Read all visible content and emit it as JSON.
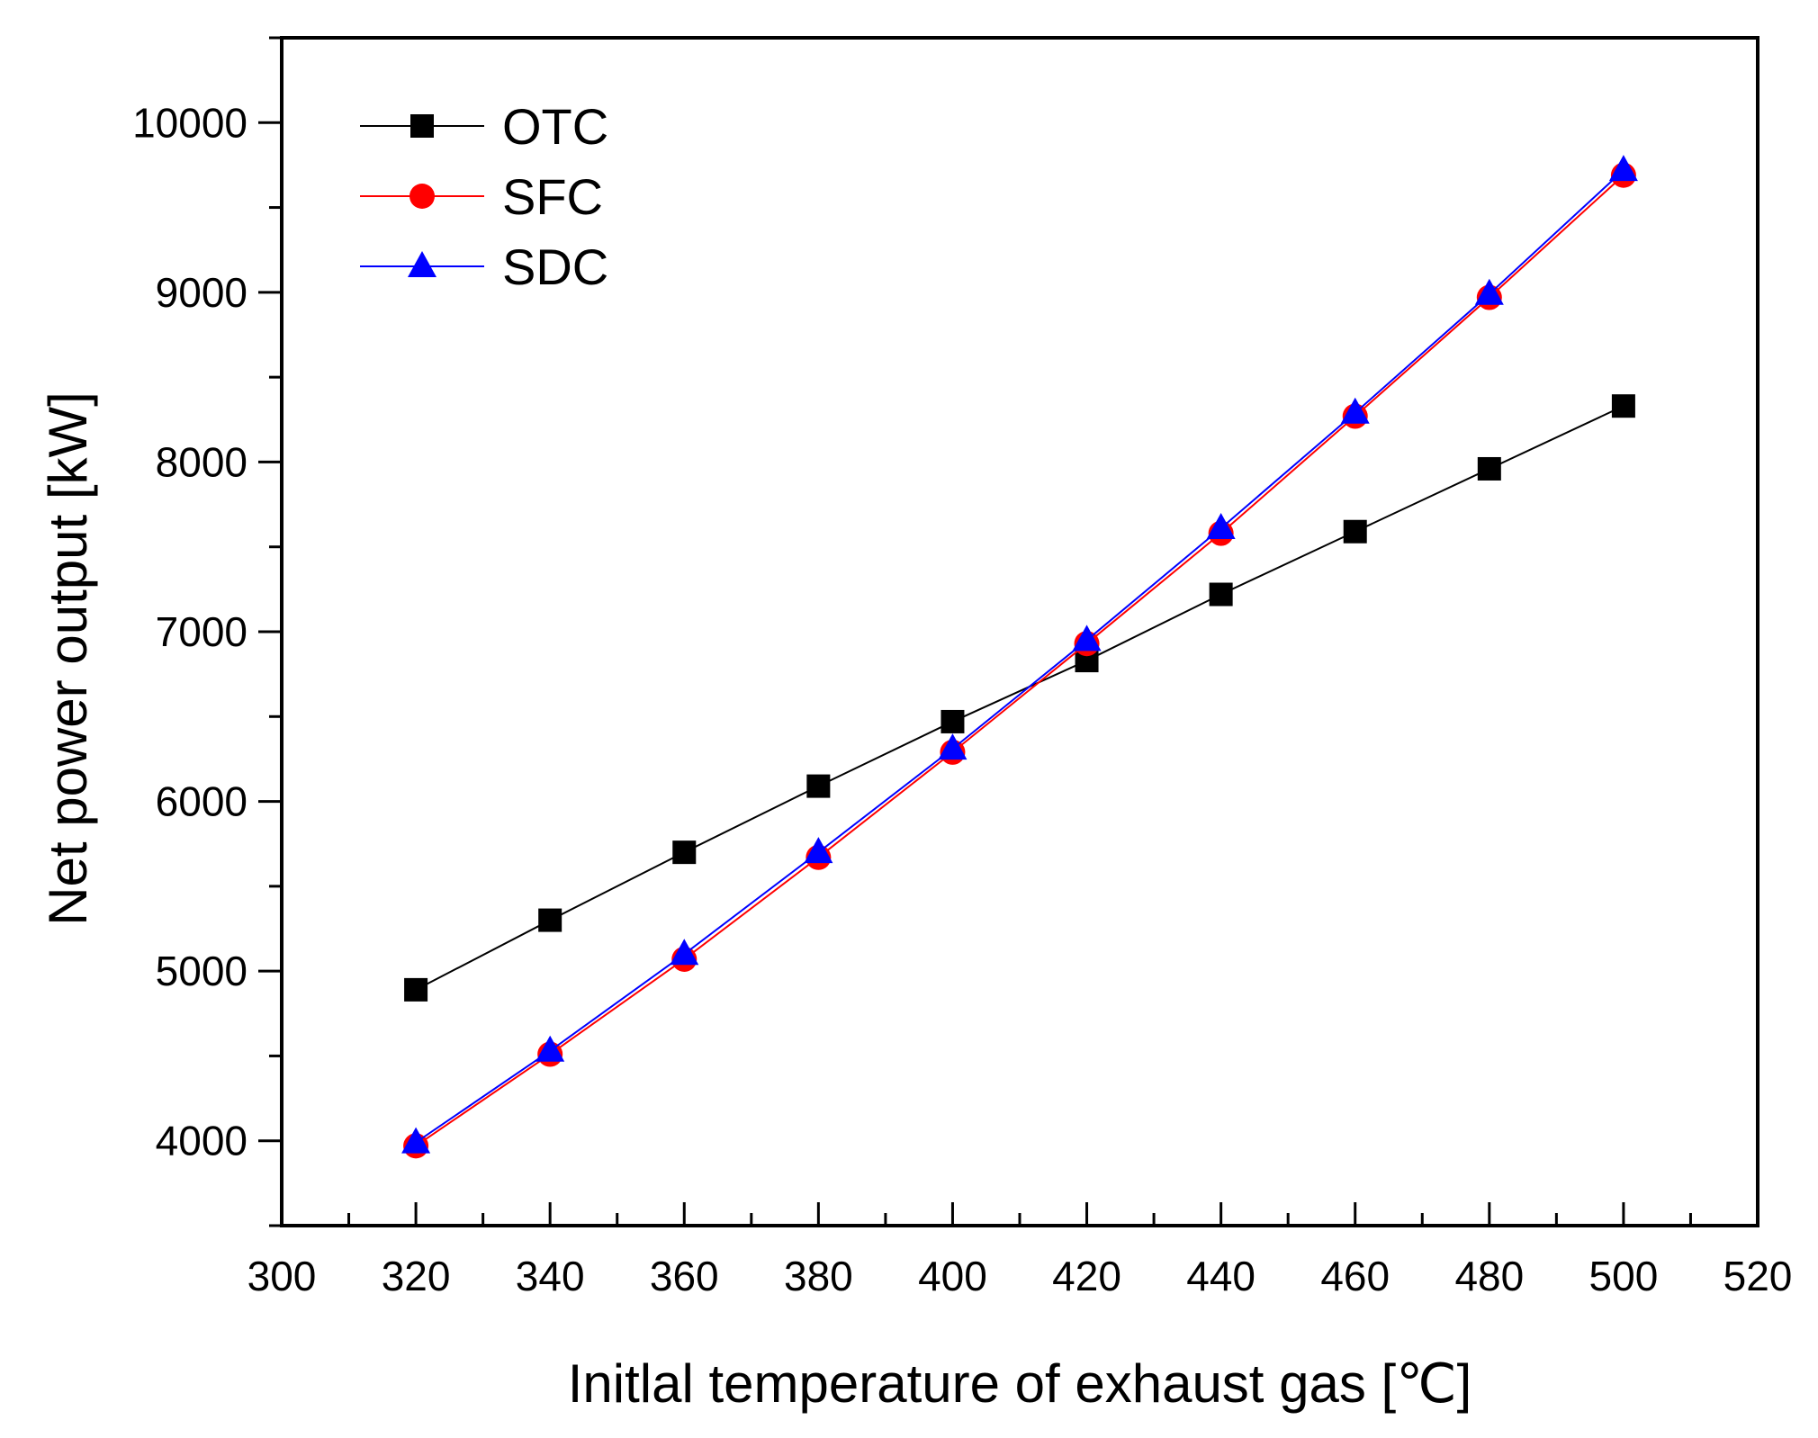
{
  "chart_data": {
    "type": "line",
    "xlabel": "Initlal temperature of exhaust gas [℃]",
    "ylabel": "Net power output [kW]",
    "xlim": [
      300,
      520
    ],
    "ylim": [
      3500,
      10500
    ],
    "x_ticks": [
      300,
      320,
      340,
      360,
      380,
      400,
      420,
      440,
      460,
      480,
      500,
      520
    ],
    "x_tick_labels": [
      "300",
      "320",
      "340",
      "360",
      "380",
      "400",
      "420",
      "440",
      "460",
      "480",
      "500",
      "520"
    ],
    "y_ticks": [
      4000,
      5000,
      6000,
      7000,
      8000,
      9000,
      10000
    ],
    "y_tick_labels": [
      "4000",
      "5000",
      "6000",
      "7000",
      "8000",
      "9000",
      "10000"
    ],
    "x": [
      320,
      340,
      360,
      380,
      400,
      420,
      440,
      460,
      480,
      500
    ],
    "legend_position": "top-left",
    "grid": false,
    "series": [
      {
        "name": "OTC",
        "color": "#000000",
        "marker": "square",
        "values": [
          4890,
          5300,
          5700,
          6090,
          6470,
          6830,
          7220,
          7590,
          7960,
          8330
        ]
      },
      {
        "name": "SFC",
        "color": "#ff0000",
        "marker": "circle",
        "values": [
          3970,
          4510,
          5070,
          5670,
          6290,
          6930,
          7580,
          8270,
          8970,
          9690
        ]
      },
      {
        "name": "SDC",
        "color": "#0000ff",
        "marker": "triangle",
        "values": [
          3990,
          4530,
          5100,
          5700,
          6310,
          6950,
          7610,
          8290,
          8990,
          9720
        ]
      }
    ]
  }
}
